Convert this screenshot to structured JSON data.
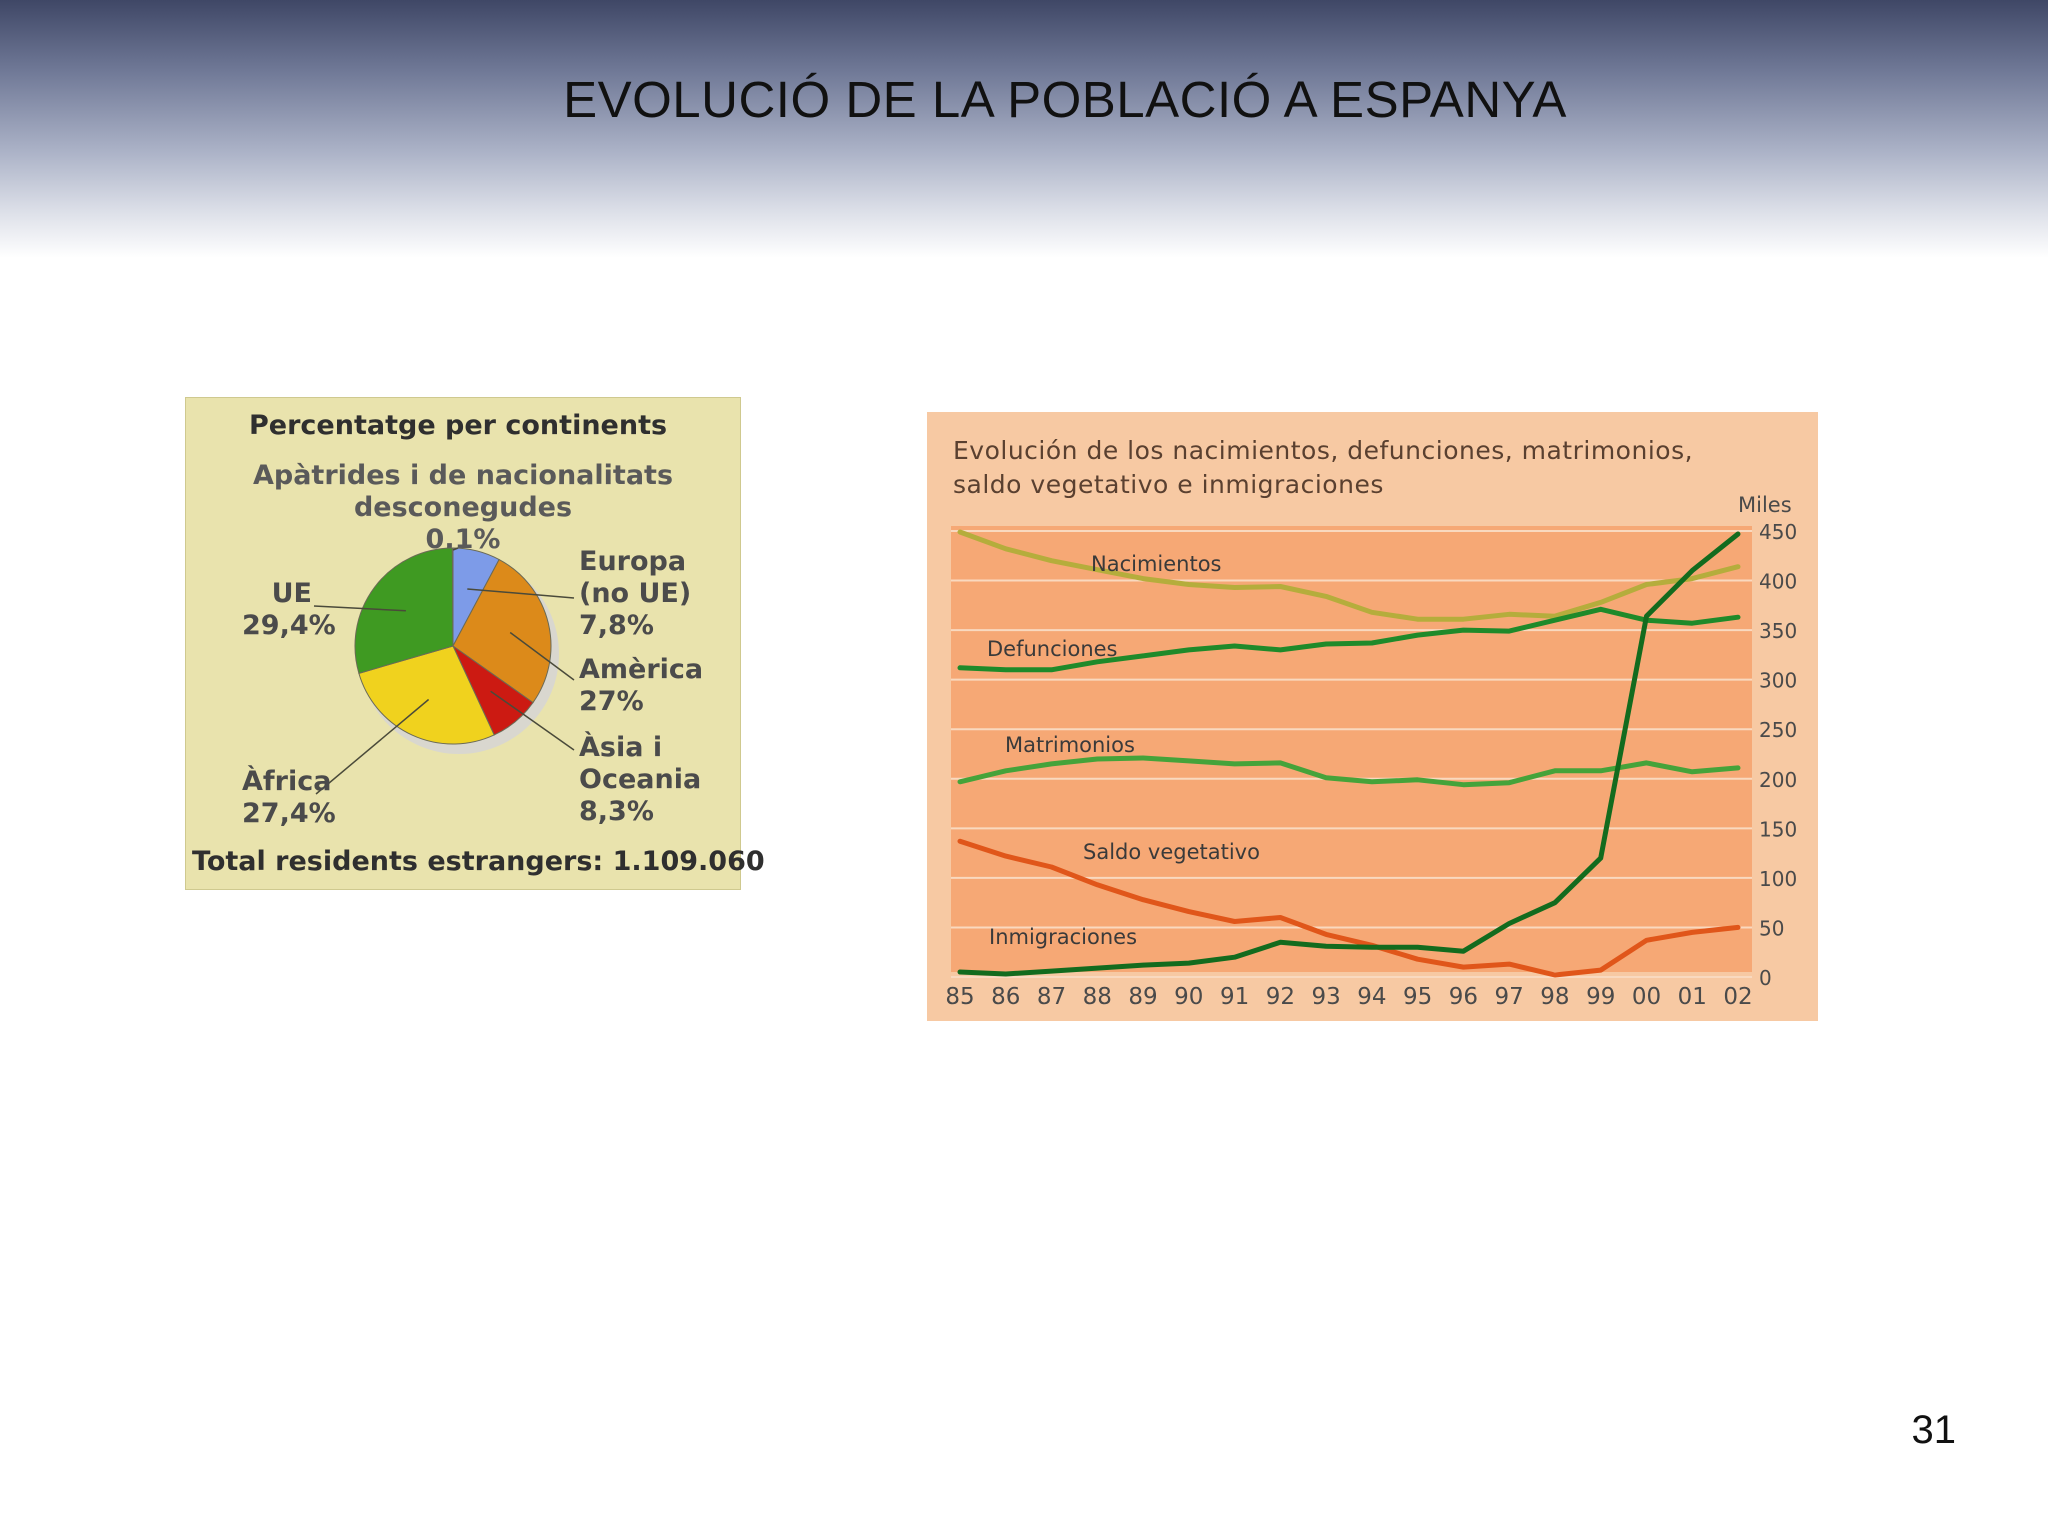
{
  "slide": {
    "title": "EVOLUCIÓ DE LA POBLACIÓ A ESPANYA",
    "page_number": "31"
  },
  "chart_data": [
    {
      "type": "pie",
      "title": "Percentatge per continents",
      "subtitle_lines": [
        "Apàtrides i de nacionalitats",
        "desconegudes",
        "0,1%"
      ],
      "slices": [
        {
          "label": "Europa (no UE)",
          "value": 7.8,
          "color": "#7d9be8"
        },
        {
          "label": "Amèrica",
          "value": 27.0,
          "color": "#dc8a1a"
        },
        {
          "label": "Àsia i Oceania",
          "value": 8.3,
          "color": "#cc1a12"
        },
        {
          "label": "Àfrica",
          "value": 27.4,
          "color": "#f0d21e"
        },
        {
          "label": "UE",
          "value": 29.4,
          "color": "#3f9a22"
        },
        {
          "label": "Apàtrides i de nacionalitats desconegudes",
          "value": 0.1,
          "color": "#5f86d8"
        }
      ],
      "labels": {
        "europa": [
          "Europa",
          "(no UE)",
          "7,8%"
        ],
        "ue": [
          "UE",
          "29,4%"
        ],
        "america": [
          "Amèrica",
          "27%"
        ],
        "asia": [
          "Àsia i",
          "Oceania",
          "8,3%"
        ],
        "africa": [
          "Àfrica",
          "27,4%"
        ]
      },
      "footer": "Total residents estrangers: 1.109.060"
    },
    {
      "type": "line",
      "title_lines": [
        "Evolución de los nacimientos, defunciones, matrimonios,",
        "saldo vegetativo e inmigraciones"
      ],
      "ylabel": "Miles",
      "ylim": [
        0,
        450
      ],
      "yticks": [
        0,
        50,
        100,
        150,
        200,
        250,
        300,
        350,
        400,
        450
      ],
      "x": [
        "85",
        "86",
        "87",
        "88",
        "89",
        "90",
        "91",
        "92",
        "93",
        "94",
        "95",
        "96",
        "97",
        "98",
        "99",
        "00",
        "01",
        "02"
      ],
      "grid": true,
      "series": [
        {
          "name": "Nacimientos",
          "color": "#b5ad3c",
          "values": [
            449,
            432,
            420,
            411,
            402,
            396,
            393,
            394,
            384,
            368,
            361,
            361,
            366,
            364,
            378,
            396,
            402,
            414
          ]
        },
        {
          "name": "Defunciones",
          "color": "#1f8a2a",
          "values": [
            312,
            310,
            310,
            318,
            324,
            330,
            334,
            330,
            336,
            337,
            345,
            350,
            349,
            360,
            371,
            360,
            357,
            363
          ]
        },
        {
          "name": "Matrimonios",
          "color": "#45a33a",
          "values": [
            197,
            208,
            215,
            220,
            221,
            218,
            215,
            216,
            201,
            197,
            199,
            194,
            196,
            208,
            208,
            216,
            207,
            211
          ]
        },
        {
          "name": "Saldo vegetativo",
          "color": "#e0561a",
          "values": [
            137,
            122,
            111,
            93,
            78,
            66,
            56,
            60,
            43,
            32,
            18,
            10,
            13,
            2,
            7,
            37,
            45,
            50
          ]
        },
        {
          "name": "Inmigraciones",
          "color": "#136b1e",
          "values": [
            5,
            3,
            6,
            9,
            12,
            14,
            20,
            35,
            31,
            30,
            30,
            26,
            54,
            75,
            120,
            364,
            410,
            447
          ]
        }
      ]
    }
  ]
}
